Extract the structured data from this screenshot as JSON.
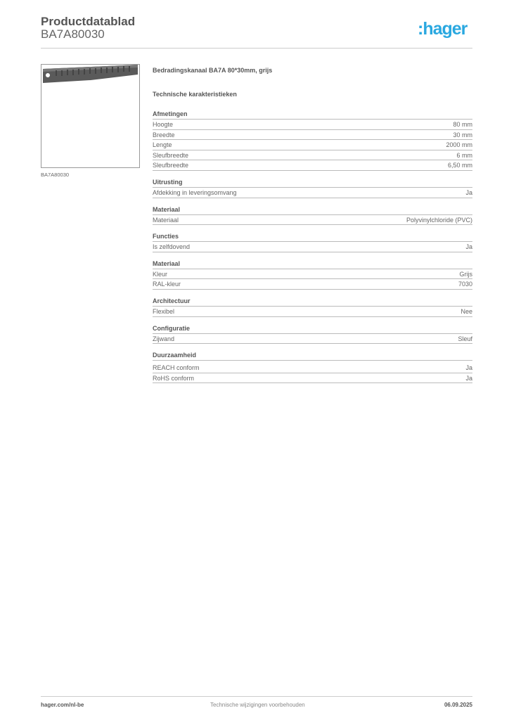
{
  "header": {
    "title": "Productdatablad",
    "subtitle": "BA7A80030",
    "logo": ":hager"
  },
  "product": {
    "image_caption": "BA7A80030",
    "title": "Bedradingskanaal BA7A 80*30mm, grijs",
    "section_title": "Technische karakteristieken"
  },
  "sections": [
    {
      "heading": "Afmetingen",
      "rows": [
        [
          "Hoogte",
          "80 mm"
        ],
        [
          "Breedte",
          "30 mm"
        ],
        [
          "Lengte",
          "2000 mm"
        ],
        [
          "Sleufbreedte",
          "6 mm"
        ],
        [
          "Sleufbreedte",
          "6,50 mm"
        ]
      ]
    },
    {
      "heading": "Uitrusting",
      "rows": [
        [
          "Afdekking in leveringsomvang",
          "Ja"
        ]
      ]
    },
    {
      "heading": "Materiaal",
      "rows": [
        [
          "Materiaal",
          "Polyvinylchloride (PVC)"
        ]
      ]
    },
    {
      "heading": "Functies",
      "rows": [
        [
          "Is zelfdovend",
          "Ja"
        ]
      ]
    },
    {
      "heading": "Materiaal",
      "rows": [
        [
          "Kleur",
          "Grijs"
        ],
        [
          "RAL-kleur",
          "7030"
        ]
      ]
    },
    {
      "heading": "Architectuur",
      "rows": [
        [
          "Flexibel",
          "Nee"
        ]
      ]
    },
    {
      "heading": "Configuratie",
      "rows": [
        [
          "Zijwand",
          "Sleuf"
        ]
      ]
    },
    {
      "heading": "Duurzaamheid",
      "rows": [
        [
          "REACH conform",
          "Ja"
        ],
        [
          "RoHS conform",
          "Ja"
        ]
      ]
    }
  ],
  "footer": {
    "website": "hager.com/nl-be",
    "note": "Technische wijzigingen voorbehouden",
    "date": "06.09.2025"
  },
  "colors": {
    "brand": "#2aa8e0"
  }
}
